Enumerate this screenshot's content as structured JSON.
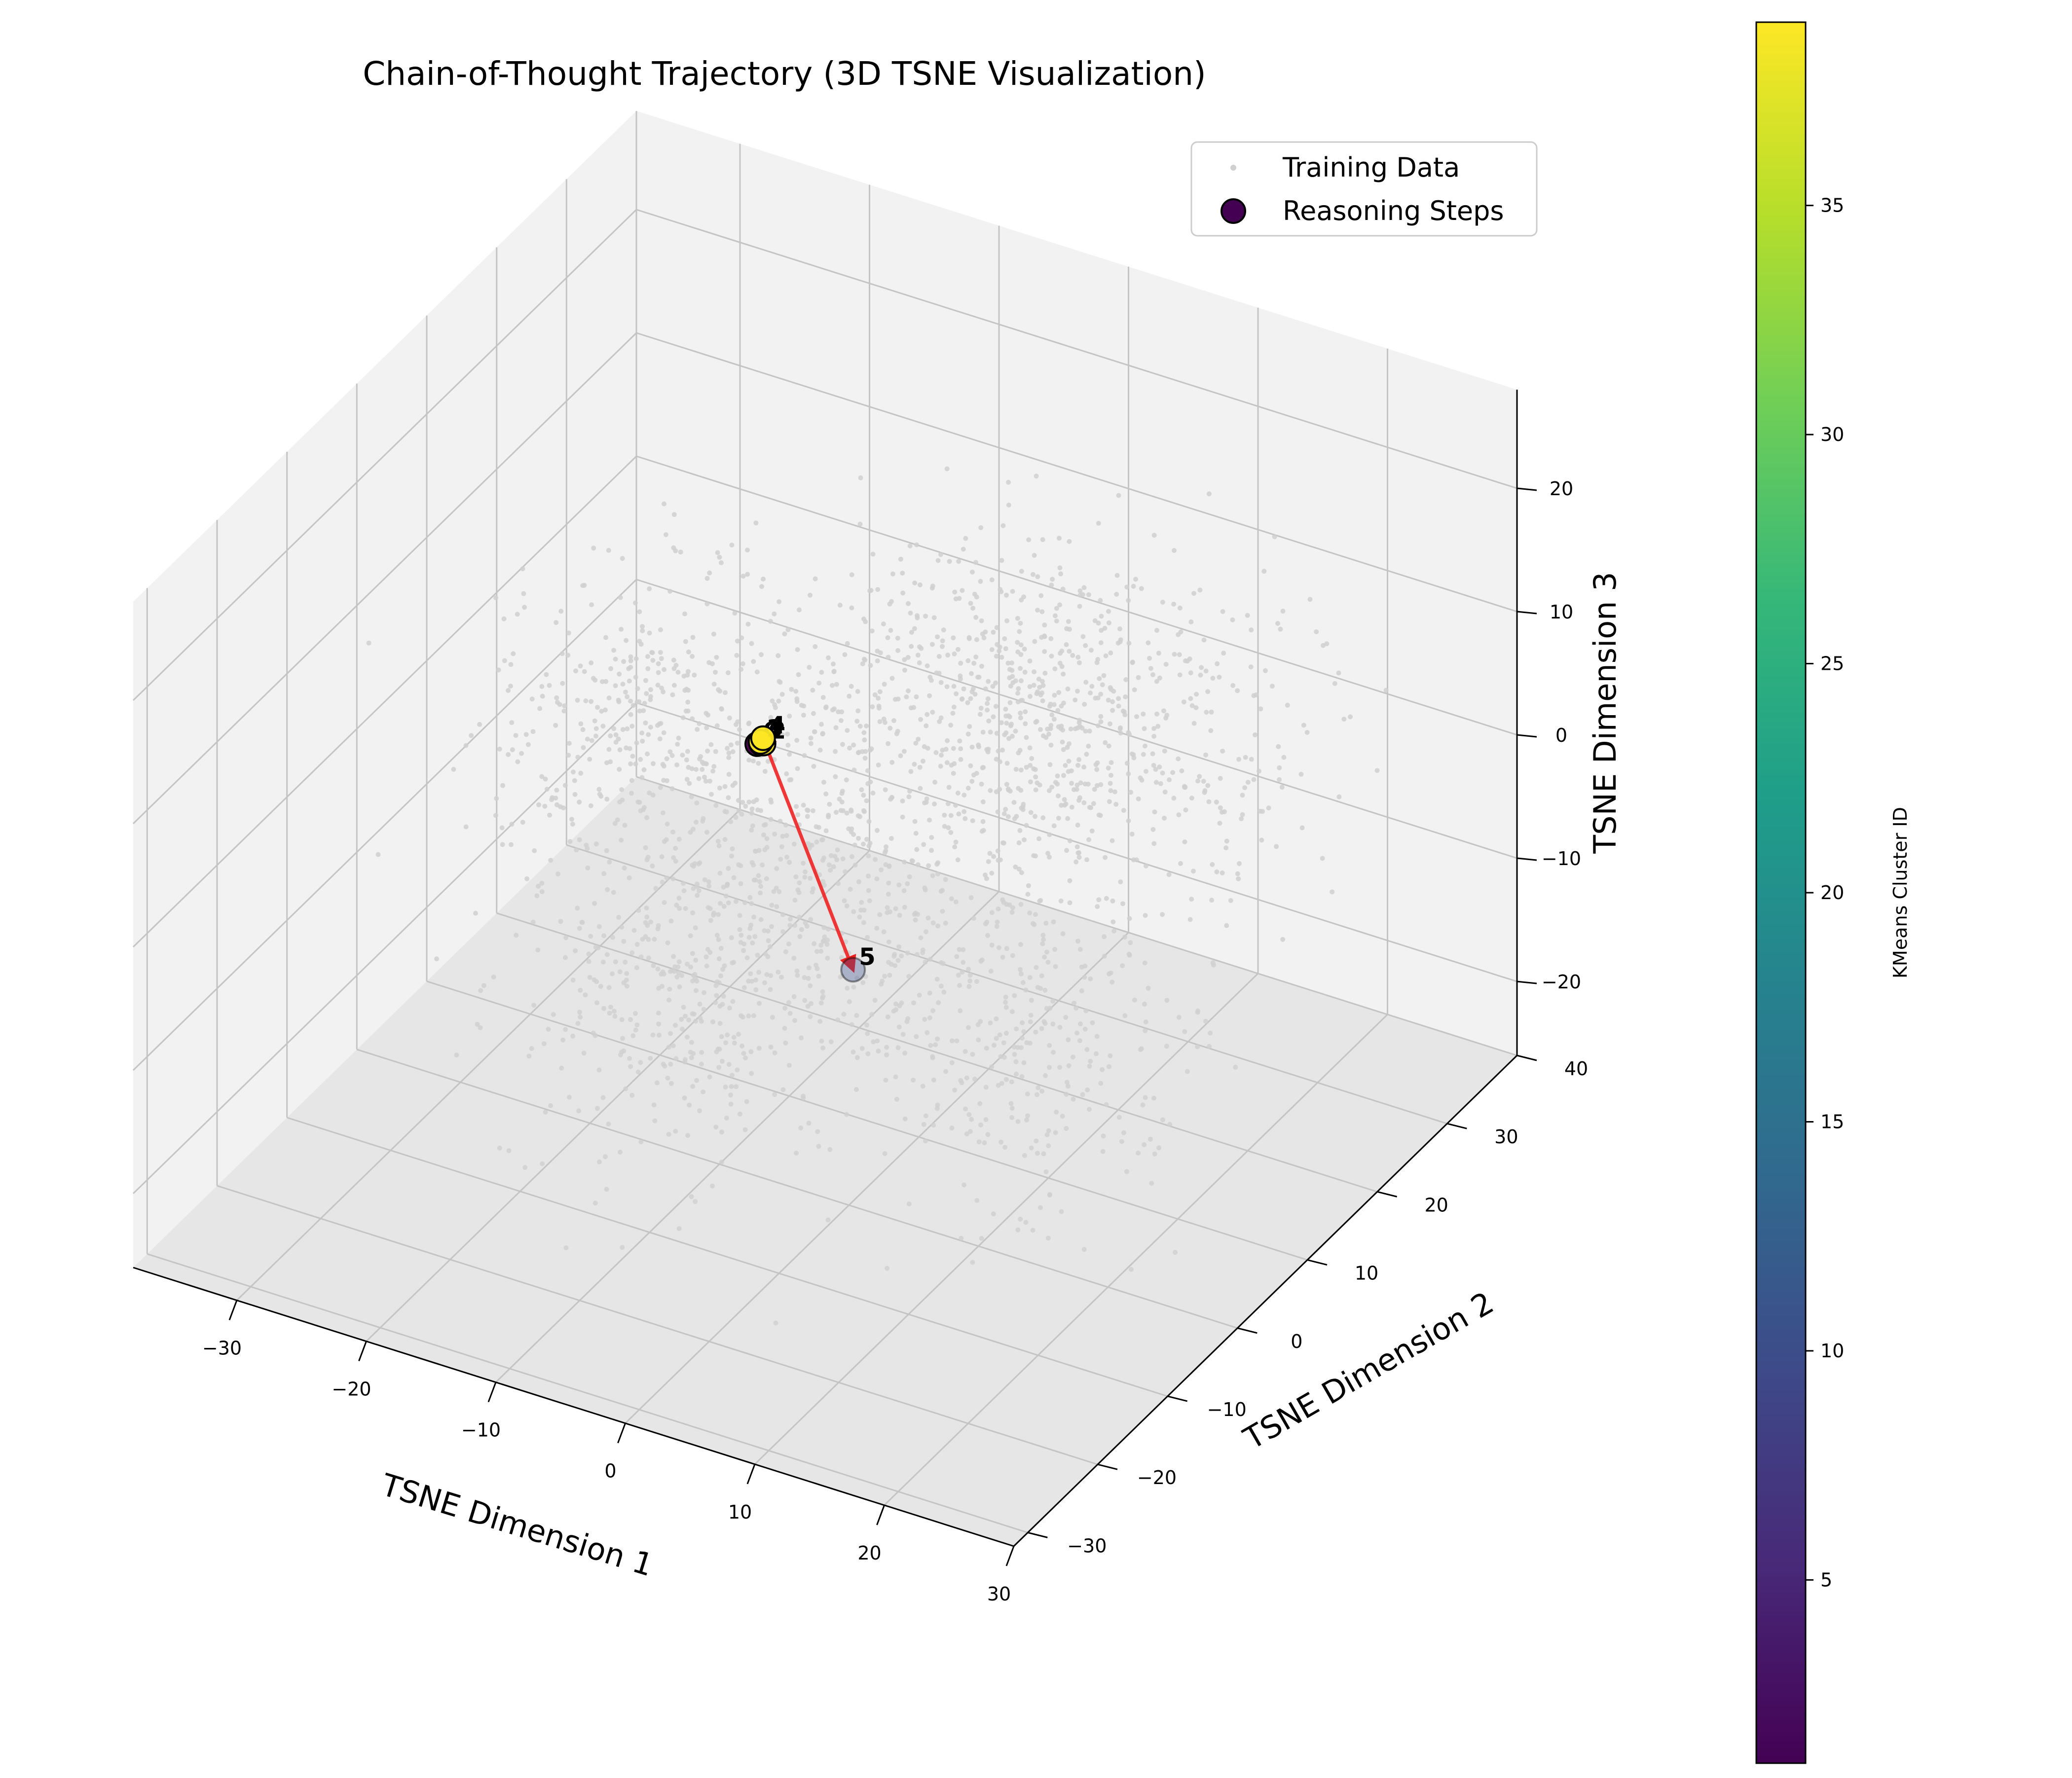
{
  "chart_data": {
    "type": "scatter",
    "projection": "3d",
    "title": "Chain-of-Thought Trajectory (3D TSNE Visualization)",
    "xlabel": "TSNE Dimension 1",
    "ylabel": "TSNE Dimension 2",
    "zlabel": "TSNE Dimension 3",
    "xlim": [
      -38,
      30
    ],
    "ylim": [
      -32,
      40
    ],
    "zlim": [
      -26,
      28
    ],
    "x_ticks": [
      -30,
      -20,
      -10,
      0,
      10,
      20,
      30
    ],
    "y_ticks": [
      -30,
      -20,
      -10,
      0,
      10,
      20,
      30,
      40
    ],
    "z_ticks": [
      -20,
      -10,
      0,
      10,
      20
    ],
    "grid": true,
    "legend_position": "top-right",
    "colors": {
      "training_points": "#d0d0d0",
      "trajectory_arrow": "#ee2222",
      "pane_light": "#f2f2f2",
      "pane_dark": "#e6e6e6",
      "grid": "#c4c4c4"
    },
    "series": [
      {
        "name": "Training Data",
        "kind": "background-cloud",
        "color": "#d0d0d0",
        "clusters": [
          {
            "cx": -22,
            "cy": 8,
            "cz": 2,
            "sx": 4,
            "sy": 7,
            "sz": 5,
            "n": 300
          },
          {
            "cx": -14,
            "cy": 14,
            "cz": -6,
            "sx": 5,
            "sy": 7,
            "sz": 6,
            "n": 280
          },
          {
            "cx": -6,
            "cy": -14,
            "cz": -4,
            "sx": 5,
            "sy": 6,
            "sz": 6,
            "n": 320
          },
          {
            "cx": 4,
            "cy": -6,
            "cz": 0,
            "sx": 7,
            "sy": 6,
            "sz": 6,
            "n": 330
          },
          {
            "cx": 12,
            "cy": 16,
            "cz": 6,
            "sx": 7,
            "sy": 8,
            "sz": 5,
            "n": 380
          },
          {
            "cx": -2,
            "cy": 24,
            "cz": 4,
            "sx": 6,
            "sy": 6,
            "sz": 5,
            "n": 260
          },
          {
            "cx": 16,
            "cy": -2,
            "cz": -8,
            "sx": 5,
            "sy": 6,
            "sz": 6,
            "n": 250
          },
          {
            "cx": 6,
            "cy": 6,
            "cz": 10,
            "sx": 6,
            "sy": 7,
            "sz": 5,
            "n": 220
          }
        ]
      },
      {
        "name": "Reasoning Steps",
        "kind": "trajectory",
        "points": [
          {
            "step": "0",
            "x": -6.0,
            "y": -2.0,
            "z": 10.5,
            "cluster": 1
          },
          {
            "step": "1",
            "x": -5.6,
            "y": -2.2,
            "z": 10.8,
            "cluster": 39
          },
          {
            "step": "2",
            "x": -5.3,
            "y": -2.4,
            "z": 11.0,
            "cluster": 39
          },
          {
            "step": "3",
            "x": -5.8,
            "y": -1.9,
            "z": 10.7,
            "cluster": 39
          },
          {
            "step": "4",
            "x": -5.5,
            "y": -2.1,
            "z": 11.2,
            "cluster": 39
          },
          {
            "step": "5",
            "x": -1.3,
            "y": 3.0,
            "z": -9.0,
            "cluster": 10
          }
        ]
      }
    ],
    "colorbar": {
      "label": "KMeans Cluster ID",
      "colormap": "viridis",
      "min": 1,
      "max": 39,
      "ticks": [
        5,
        10,
        15,
        20,
        25,
        30,
        35
      ]
    }
  }
}
